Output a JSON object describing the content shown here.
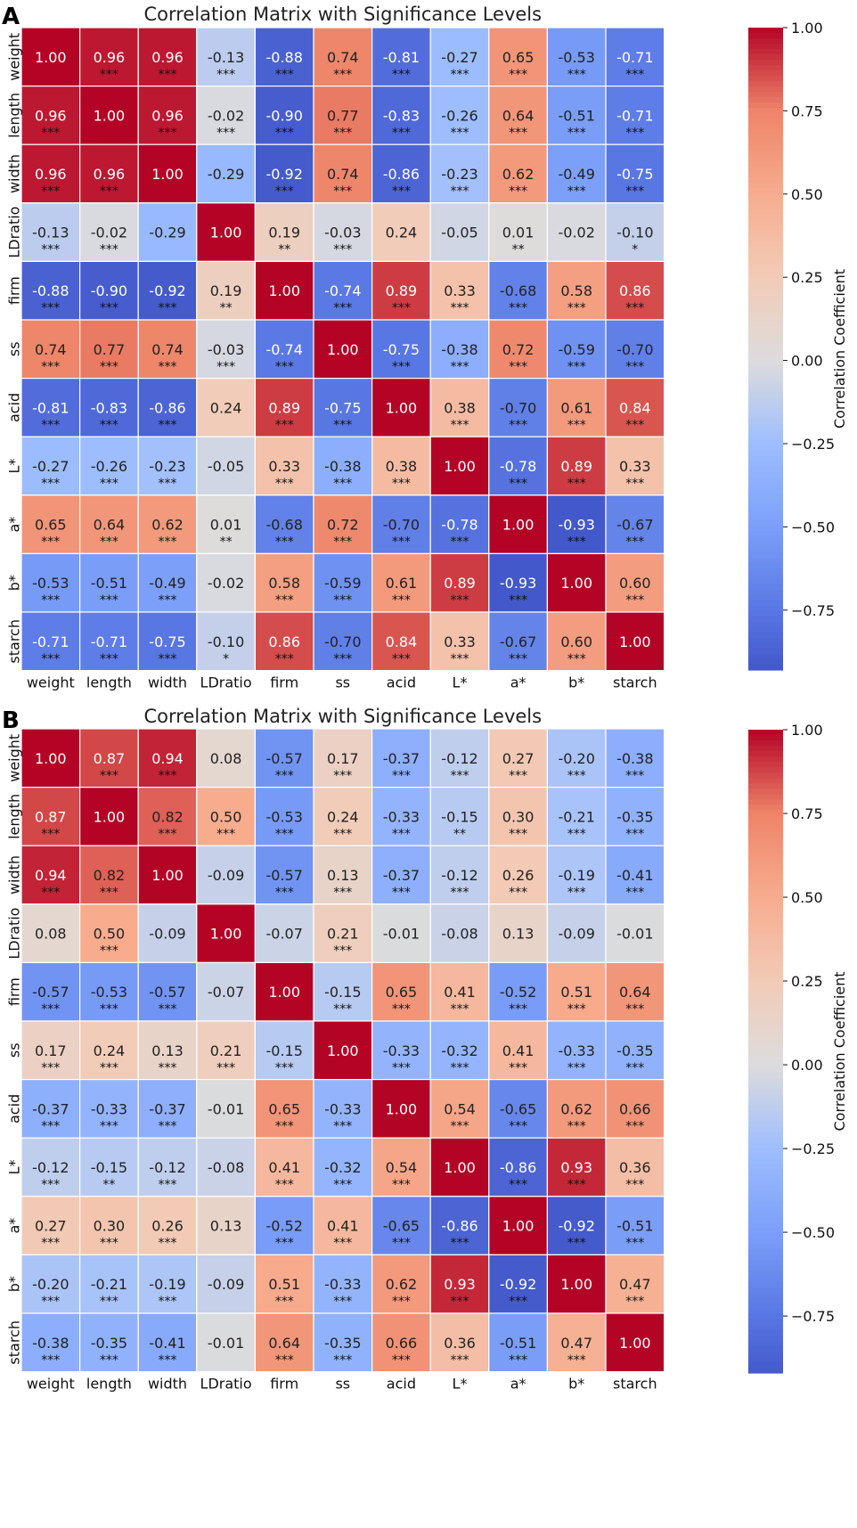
{
  "colors": {
    "min": "#3b4cc0",
    "mid": "#dddcdc",
    "max": "#b40426"
  },
  "chart_data": [
    {
      "panel": "A",
      "type": "heatmap",
      "title": "Correlation Matrix with Significance Levels",
      "labels": [
        "weight",
        "length",
        "width",
        "LDratio",
        "firm",
        "ss",
        "acid",
        "L*",
        "a*",
        "b*",
        "starch"
      ],
      "colorbar_label": "Correlation Coefficient",
      "colorbar_ticks": [
        "1.00",
        "0.75",
        "0.50",
        "0.25",
        "0.00",
        "−0.25",
        "−0.50",
        "−0.75"
      ],
      "colorbar_range": [
        -0.93,
        1.0
      ],
      "values": [
        [
          1.0,
          0.96,
          0.96,
          -0.13,
          -0.88,
          0.74,
          -0.81,
          -0.27,
          0.65,
          -0.53,
          -0.71
        ],
        [
          0.96,
          1.0,
          0.96,
          -0.02,
          -0.9,
          0.77,
          -0.83,
          -0.26,
          0.64,
          -0.51,
          -0.71
        ],
        [
          0.96,
          0.96,
          1.0,
          -0.29,
          -0.92,
          0.74,
          -0.86,
          -0.23,
          0.62,
          -0.49,
          -0.75
        ],
        [
          -0.13,
          -0.02,
          -0.29,
          1.0,
          0.19,
          -0.03,
          0.24,
          -0.05,
          0.01,
          -0.02,
          -0.1
        ],
        [
          -0.88,
          -0.9,
          -0.92,
          0.19,
          1.0,
          -0.74,
          0.89,
          0.33,
          -0.68,
          0.58,
          0.86
        ],
        [
          0.74,
          0.77,
          0.74,
          -0.03,
          -0.74,
          1.0,
          -0.75,
          -0.38,
          0.72,
          -0.59,
          -0.7
        ],
        [
          -0.81,
          -0.83,
          -0.86,
          0.24,
          0.89,
          -0.75,
          1.0,
          0.38,
          -0.7,
          0.61,
          0.84
        ],
        [
          -0.27,
          -0.26,
          -0.23,
          -0.05,
          0.33,
          -0.38,
          0.38,
          1.0,
          -0.78,
          0.89,
          0.33
        ],
        [
          0.65,
          0.64,
          0.62,
          0.01,
          -0.68,
          0.72,
          -0.7,
          -0.78,
          1.0,
          -0.93,
          -0.67
        ],
        [
          -0.53,
          -0.51,
          -0.49,
          -0.02,
          0.58,
          -0.59,
          0.61,
          0.89,
          -0.93,
          1.0,
          0.6
        ],
        [
          -0.71,
          -0.71,
          -0.75,
          -0.1,
          0.86,
          -0.7,
          0.84,
          0.33,
          -0.67,
          0.6,
          1.0
        ]
      ],
      "significance": [
        [
          "",
          "***",
          "***",
          "***",
          "***",
          "***",
          "***",
          "***",
          "***",
          "***",
          "***"
        ],
        [
          "***",
          "",
          "***",
          "***",
          "***",
          "***",
          "***",
          "***",
          "***",
          "***",
          "***"
        ],
        [
          "***",
          "***",
          "",
          "",
          "***",
          "***",
          "***",
          "***",
          "***",
          "***",
          "***"
        ],
        [
          "***",
          "***",
          "",
          "",
          "**",
          "***",
          "",
          "",
          "**",
          "",
          "*"
        ],
        [
          "***",
          "***",
          "***",
          "**",
          "",
          "***",
          "***",
          "***",
          "***",
          "***",
          "***"
        ],
        [
          "***",
          "***",
          "***",
          "***",
          "***",
          "",
          "***",
          "***",
          "***",
          "***",
          "***"
        ],
        [
          "***",
          "***",
          "***",
          "",
          "***",
          "***",
          "",
          "***",
          "***",
          "***",
          "***"
        ],
        [
          "***",
          "***",
          "***",
          "",
          "***",
          "***",
          "***",
          "",
          "***",
          "***",
          "***"
        ],
        [
          "***",
          "***",
          "***",
          "**",
          "***",
          "***",
          "***",
          "***",
          "",
          "***",
          "***"
        ],
        [
          "***",
          "***",
          "***",
          "",
          "***",
          "***",
          "***",
          "***",
          "***",
          "",
          "***"
        ],
        [
          "***",
          "***",
          "***",
          "*",
          "***",
          "***",
          "***",
          "***",
          "***",
          "***",
          ""
        ]
      ]
    },
    {
      "panel": "B",
      "type": "heatmap",
      "title": "Correlation Matrix with Significance Levels",
      "labels": [
        "weight",
        "length",
        "width",
        "LDratio",
        "firm",
        "ss",
        "acid",
        "L*",
        "a*",
        "b*",
        "starch"
      ],
      "colorbar_label": "Correlation Coefficient",
      "colorbar_ticks": [
        "1.00",
        "0.75",
        "0.50",
        "0.25",
        "0.00",
        "−0.25",
        "−0.50",
        "−0.75"
      ],
      "colorbar_range": [
        -0.92,
        1.0
      ],
      "values": [
        [
          1.0,
          0.87,
          0.94,
          0.08,
          -0.57,
          0.17,
          -0.37,
          -0.12,
          0.27,
          -0.2,
          -0.38
        ],
        [
          0.87,
          1.0,
          0.82,
          0.5,
          -0.53,
          0.24,
          -0.33,
          -0.15,
          0.3,
          -0.21,
          -0.35
        ],
        [
          0.94,
          0.82,
          1.0,
          -0.09,
          -0.57,
          0.13,
          -0.37,
          -0.12,
          0.26,
          -0.19,
          -0.41
        ],
        [
          0.08,
          0.5,
          -0.09,
          1.0,
          -0.07,
          0.21,
          -0.01,
          -0.08,
          0.13,
          -0.09,
          -0.01
        ],
        [
          -0.57,
          -0.53,
          -0.57,
          -0.07,
          1.0,
          -0.15,
          0.65,
          0.41,
          -0.52,
          0.51,
          0.64
        ],
        [
          0.17,
          0.24,
          0.13,
          0.21,
          -0.15,
          1.0,
          -0.33,
          -0.32,
          0.41,
          -0.33,
          -0.35
        ],
        [
          -0.37,
          -0.33,
          -0.37,
          -0.01,
          0.65,
          -0.33,
          1.0,
          0.54,
          -0.65,
          0.62,
          0.66
        ],
        [
          -0.12,
          -0.15,
          -0.12,
          -0.08,
          0.41,
          -0.32,
          0.54,
          1.0,
          -0.86,
          0.93,
          0.36
        ],
        [
          0.27,
          0.3,
          0.26,
          0.13,
          -0.52,
          0.41,
          -0.65,
          -0.86,
          1.0,
          -0.92,
          -0.51
        ],
        [
          -0.2,
          -0.21,
          -0.19,
          -0.09,
          0.51,
          -0.33,
          0.62,
          0.93,
          -0.92,
          1.0,
          0.47
        ],
        [
          -0.38,
          -0.35,
          -0.41,
          -0.01,
          0.64,
          -0.35,
          0.66,
          0.36,
          -0.51,
          0.47,
          1.0
        ]
      ],
      "significance": [
        [
          "",
          "***",
          "***",
          "",
          "***",
          "***",
          "***",
          "***",
          "***",
          "***",
          "***"
        ],
        [
          "***",
          "",
          "***",
          "***",
          "***",
          "***",
          "***",
          "**",
          "***",
          "***",
          "***"
        ],
        [
          "***",
          "***",
          "",
          "",
          "***",
          "***",
          "***",
          "***",
          "***",
          "***",
          "***"
        ],
        [
          "",
          "***",
          "",
          "",
          "",
          "***",
          "",
          "",
          "",
          "",
          ""
        ],
        [
          "***",
          "***",
          "***",
          "",
          "",
          "***",
          "***",
          "***",
          "***",
          "***",
          "***"
        ],
        [
          "***",
          "***",
          "***",
          "***",
          "***",
          "",
          "***",
          "***",
          "***",
          "***",
          "***"
        ],
        [
          "***",
          "***",
          "***",
          "",
          "***",
          "***",
          "",
          "***",
          "***",
          "***",
          "***"
        ],
        [
          "***",
          "**",
          "***",
          "",
          "***",
          "***",
          "***",
          "",
          "***",
          "***",
          "***"
        ],
        [
          "***",
          "***",
          "***",
          "",
          "***",
          "***",
          "***",
          "***",
          "",
          "***",
          "***"
        ],
        [
          "***",
          "***",
          "***",
          "",
          "***",
          "***",
          "***",
          "***",
          "***",
          "",
          "***"
        ],
        [
          "***",
          "***",
          "***",
          "",
          "***",
          "***",
          "***",
          "***",
          "***",
          "***",
          ""
        ]
      ]
    }
  ]
}
